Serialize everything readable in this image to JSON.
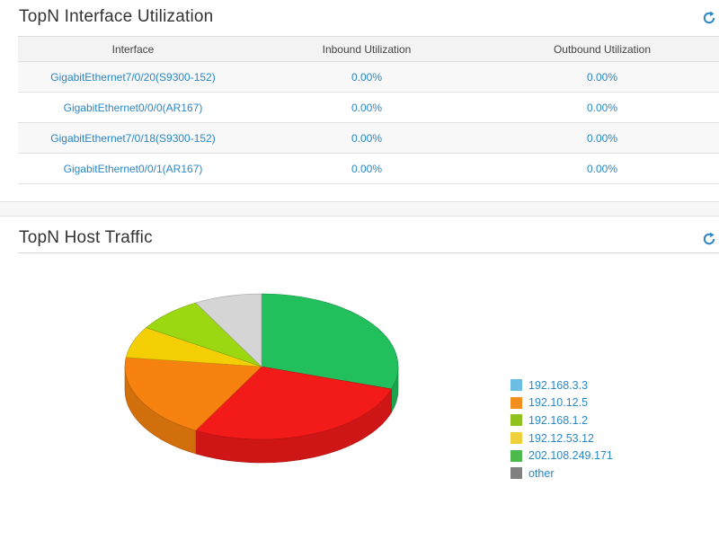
{
  "interface_panel": {
    "title": "TopN Interface Utilization",
    "columns": [
      "Interface",
      "Inbound Utilization",
      "Outbound Utilization"
    ],
    "rows": [
      {
        "interface": "GigabitEthernet7/0/20(S9300-152)",
        "inbound": "0.00%",
        "outbound": "0.00%"
      },
      {
        "interface": "GigabitEthernet0/0/0(AR167)",
        "inbound": "0.00%",
        "outbound": "0.00%"
      },
      {
        "interface": "GigabitEthernet7/0/18(S9300-152)",
        "inbound": "0.00%",
        "outbound": "0.00%"
      },
      {
        "interface": "GigabitEthernet0/0/1(AR167)",
        "inbound": "0.00%",
        "outbound": "0.00%"
      }
    ]
  },
  "host_panel": {
    "title": "TopN Host Traffic"
  },
  "icons": {
    "refresh": "refresh-icon"
  },
  "colors": {
    "link": "#2a87c4",
    "refresh": "#2a87c4"
  },
  "chart_data": {
    "type": "pie",
    "style": "3d",
    "legend_position": "right",
    "legend": [
      {
        "name": "192.168.3.3",
        "color": "#6bbde3"
      },
      {
        "name": "192.10.12.5",
        "color": "#f28f1e"
      },
      {
        "name": "192.168.1.2",
        "color": "#8fc21f"
      },
      {
        "name": "192.12.53.12",
        "color": "#eecf3c"
      },
      {
        "name": "202.108.249.171",
        "color": "#4cba4c"
      },
      {
        "name": "other",
        "color": "#808080"
      }
    ],
    "slices": [
      {
        "value": 30,
        "color": "#22c05c"
      },
      {
        "value": 28,
        "color": "#f31a1a"
      },
      {
        "value": 19,
        "color": "#f7820f"
      },
      {
        "value": 7,
        "color": "#f5cf05"
      },
      {
        "value": 8,
        "color": "#9cd812"
      },
      {
        "value": 8,
        "color": "#d5d5d5"
      }
    ]
  }
}
